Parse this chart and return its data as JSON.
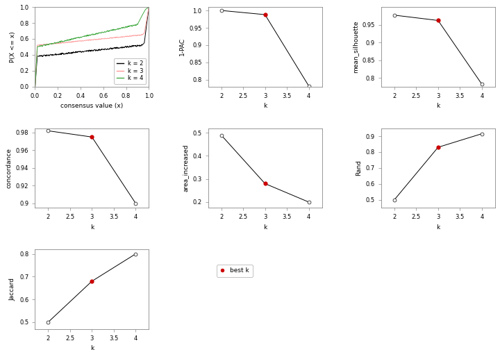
{
  "plots": {
    "pac": {
      "k": [
        2,
        3,
        4
      ],
      "y": [
        1.0,
        0.988,
        0.782
      ],
      "best_k": 3,
      "ylabel": "1-PAC",
      "ylim": [
        0.78,
        1.01
      ],
      "yticks": [
        0.8,
        0.85,
        0.9,
        0.95,
        1.0
      ]
    },
    "mean_silhouette": {
      "k": [
        2,
        3,
        4
      ],
      "y": [
        0.977,
        0.962,
        0.782
      ],
      "best_k": 3,
      "ylabel": "mean_silhouette",
      "ylim": [
        0.775,
        1.0
      ],
      "yticks": [
        0.8,
        0.85,
        0.9,
        0.95
      ]
    },
    "concordance": {
      "k": [
        2,
        3,
        4
      ],
      "y": [
        0.982,
        0.975,
        0.9
      ],
      "best_k": 3,
      "ylabel": "concordance",
      "ylim": [
        0.895,
        0.985
      ],
      "yticks": [
        0.9,
        0.92,
        0.94,
        0.96,
        0.98
      ]
    },
    "area_increased": {
      "k": [
        2,
        3,
        4
      ],
      "y": [
        0.49,
        0.28,
        0.2
      ],
      "best_k": 3,
      "ylabel": "area_increased",
      "ylim": [
        0.175,
        0.52
      ],
      "yticks": [
        0.2,
        0.3,
        0.4,
        0.5
      ]
    },
    "rand": {
      "k": [
        2,
        3,
        4
      ],
      "y": [
        0.5,
        0.83,
        0.915
      ],
      "best_k": 3,
      "ylabel": "Rand",
      "ylim": [
        0.45,
        0.95
      ],
      "yticks": [
        0.5,
        0.6,
        0.7,
        0.8,
        0.9
      ]
    },
    "jaccard": {
      "k": [
        2,
        3,
        4
      ],
      "y": [
        0.5,
        0.68,
        0.8
      ],
      "best_k": 3,
      "ylabel": "Jaccard",
      "ylim": [
        0.47,
        0.82
      ],
      "yticks": [
        0.5,
        0.6,
        0.7,
        0.8
      ]
    }
  },
  "ecdf_k2_color": "#000000",
  "ecdf_k3_color": "#FF9999",
  "ecdf_k4_color": "#44AA44",
  "best_k_color": "#CC0000",
  "line_color": "#000000",
  "xlabel_k": "k",
  "legend_labels": [
    "k = 2",
    "k = 3",
    "k = 4"
  ],
  "legend_colors": [
    "#000000",
    "#FF9999",
    "#44AA44"
  ],
  "ecdf_xlabel": "consensus value (x)",
  "ecdf_ylabel": "P(X <= x)",
  "background_color": "#FFFFFF",
  "fontsize": 6.5,
  "tick_fontsize": 6
}
